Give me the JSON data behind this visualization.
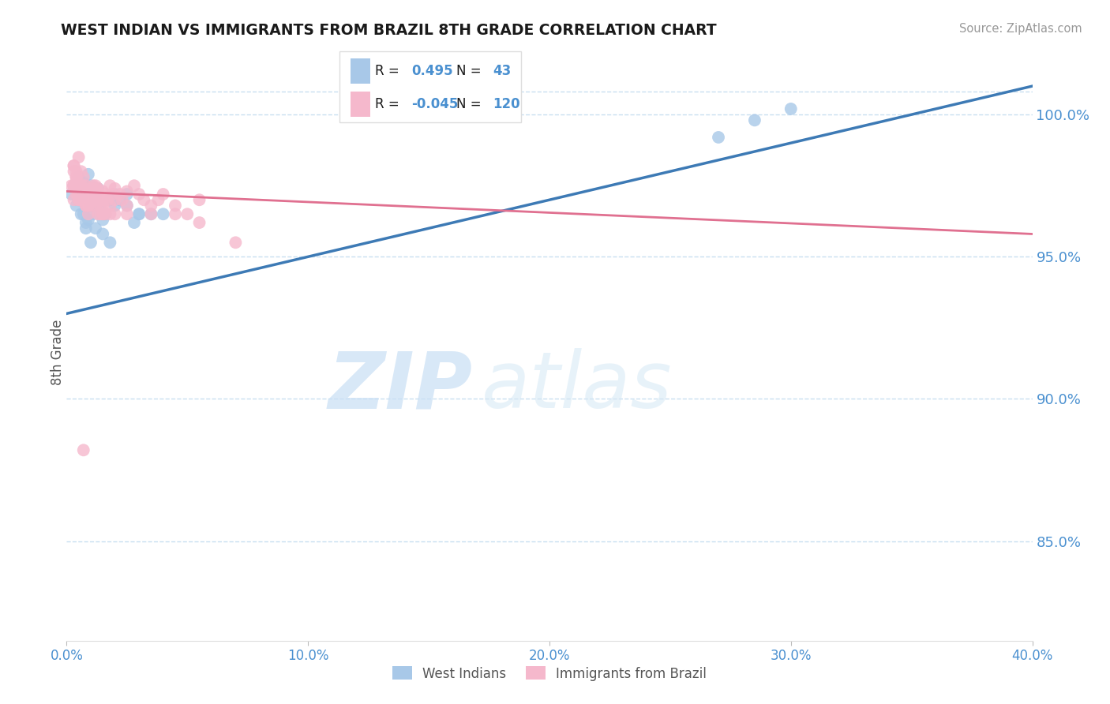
{
  "title": "WEST INDIAN VS IMMIGRANTS FROM BRAZIL 8TH GRADE CORRELATION CHART",
  "source": "Source: ZipAtlas.com",
  "ylabel": "8th Grade",
  "xlim": [
    0.0,
    40.0
  ],
  "ylim": [
    81.5,
    101.8
  ],
  "yticks": [
    85.0,
    90.0,
    95.0,
    100.0
  ],
  "xticks": [
    0,
    10,
    20,
    30,
    40
  ],
  "xtick_labels": [
    "0.0%",
    "10.0%",
    "20.0%",
    "30.0%",
    "40.0%"
  ],
  "blue_color": "#a8c8e8",
  "pink_color": "#f5b8cc",
  "blue_line_color": "#3d7ab5",
  "pink_line_color": "#e07090",
  "axis_color": "#4a90d0",
  "grid_color": "#c8dff0",
  "watermark_zip": "ZIP",
  "watermark_atlas": "atlas",
  "watermark_color": "#d8ecf8",
  "blue_line_x": [
    0.0,
    40.0
  ],
  "blue_line_y": [
    93.0,
    101.0
  ],
  "pink_line_x": [
    0.0,
    40.0
  ],
  "pink_line_y": [
    97.3,
    95.8
  ],
  "top_grid_y": 100.0,
  "legend_r_blue": "R =  0.495",
  "legend_n_blue": "N =  43",
  "legend_r_pink": "R = -0.045",
  "legend_n_pink": "N = 120",
  "blue_x": [
    0.2,
    0.3,
    0.4,
    0.5,
    0.5,
    0.6,
    0.6,
    0.7,
    0.8,
    0.9,
    0.9,
    1.0,
    1.0,
    1.1,
    1.2,
    1.2,
    1.3,
    1.4,
    1.5,
    1.6,
    1.8,
    2.0,
    2.2,
    2.5,
    2.8,
    3.0,
    3.5,
    4.0,
    1.0,
    0.5,
    0.4,
    0.6,
    0.7,
    0.8,
    1.5,
    1.8,
    2.5,
    1.2,
    3.0,
    2.0,
    27.0,
    28.5,
    30.0
  ],
  "blue_y": [
    97.2,
    97.5,
    96.8,
    97.8,
    97.0,
    96.5,
    97.3,
    97.6,
    96.0,
    97.9,
    96.3,
    97.5,
    96.8,
    96.5,
    97.2,
    96.0,
    97.4,
    96.8,
    96.3,
    96.5,
    97.0,
    96.8,
    97.0,
    97.2,
    96.2,
    96.5,
    96.5,
    96.5,
    95.5,
    97.8,
    97.4,
    97.1,
    96.5,
    96.2,
    95.8,
    95.5,
    96.8,
    97.0,
    96.5,
    97.2,
    99.2,
    99.8,
    100.2
  ],
  "pink_x": [
    0.2,
    0.3,
    0.3,
    0.4,
    0.4,
    0.4,
    0.5,
    0.5,
    0.5,
    0.5,
    0.6,
    0.6,
    0.6,
    0.7,
    0.7,
    0.7,
    0.8,
    0.8,
    0.8,
    0.8,
    0.9,
    0.9,
    0.9,
    1.0,
    1.0,
    1.0,
    1.0,
    1.1,
    1.1,
    1.2,
    1.2,
    1.2,
    1.3,
    1.3,
    1.4,
    1.4,
    1.5,
    1.5,
    1.5,
    1.6,
    1.7,
    1.8,
    1.8,
    1.9,
    2.0,
    2.0,
    2.0,
    2.2,
    2.3,
    2.5,
    2.5,
    2.8,
    3.0,
    3.2,
    3.5,
    3.8,
    4.0,
    4.5,
    5.0,
    5.5,
    0.3,
    0.5,
    0.6,
    0.8,
    1.0,
    0.4,
    0.7,
    0.9,
    1.2,
    0.5,
    0.6,
    0.8,
    1.1,
    0.4,
    0.9,
    1.3,
    0.5,
    0.7,
    1.5,
    0.3,
    0.6,
    1.0,
    0.4,
    0.8,
    1.5,
    0.5,
    0.7,
    1.2,
    0.3,
    0.9,
    0.6,
    1.8,
    0.4,
    0.7,
    1.1,
    0.5,
    0.8,
    1.4,
    0.3,
    0.6,
    1.0,
    2.5,
    0.4,
    0.9,
    1.3,
    0.5,
    0.7,
    1.6,
    0.3,
    0.8,
    0.5,
    1.0,
    3.5,
    4.5,
    5.5,
    7.0,
    1.2,
    0.4,
    0.9,
    0.7
  ],
  "pink_y": [
    97.5,
    98.2,
    97.0,
    97.8,
    97.4,
    98.0,
    97.2,
    98.5,
    97.6,
    97.0,
    97.3,
    98.0,
    97.5,
    97.8,
    97.2,
    97.0,
    97.5,
    97.2,
    96.8,
    97.0,
    97.4,
    97.1,
    96.5,
    97.3,
    97.0,
    97.2,
    96.8,
    97.5,
    97.0,
    97.3,
    96.8,
    97.5,
    97.4,
    97.0,
    97.1,
    96.8,
    97.0,
    96.5,
    97.3,
    97.2,
    97.0,
    96.8,
    97.5,
    97.2,
    97.0,
    96.5,
    97.4,
    97.2,
    97.0,
    96.8,
    97.3,
    97.5,
    97.2,
    97.0,
    96.5,
    97.0,
    97.2,
    96.8,
    96.5,
    97.0,
    98.2,
    97.5,
    97.0,
    96.8,
    97.3,
    97.8,
    97.2,
    97.0,
    97.4,
    97.5,
    97.3,
    97.0,
    97.2,
    97.8,
    97.0,
    96.5,
    97.5,
    97.2,
    96.8,
    98.0,
    97.4,
    97.2,
    97.6,
    97.0,
    96.5,
    97.3,
    97.2,
    97.0,
    97.5,
    96.8,
    97.3,
    96.5,
    97.4,
    97.1,
    97.0,
    97.2,
    97.3,
    96.5,
    97.5,
    97.2,
    97.0,
    96.5,
    97.4,
    96.8,
    97.0,
    97.2,
    97.3,
    96.5,
    97.5,
    97.2,
    97.0,
    97.4,
    96.8,
    96.5,
    96.2,
    95.5,
    97.0,
    97.2,
    97.3,
    88.2
  ]
}
